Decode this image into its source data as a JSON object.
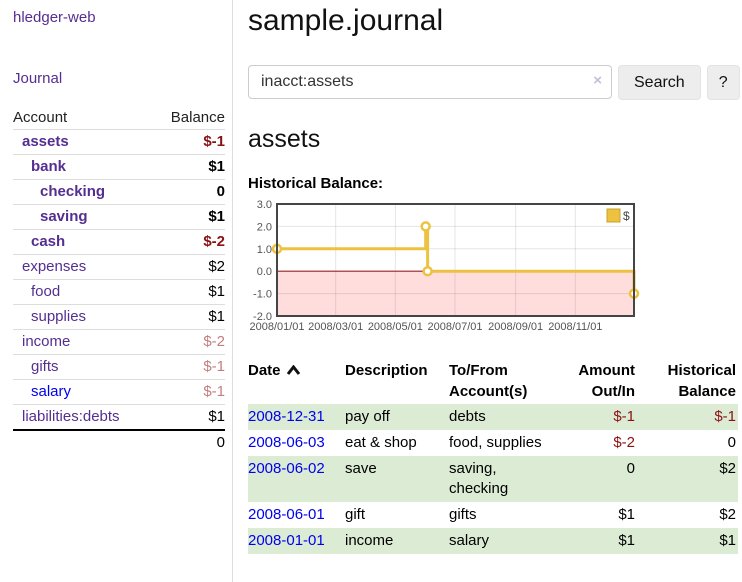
{
  "sidebar": {
    "brand": "hledger-web",
    "journal_link": "Journal",
    "columns": {
      "account": "Account",
      "balance": "Balance"
    },
    "accounts": [
      {
        "name": "assets",
        "indent": 0,
        "bold": true,
        "balance": "$-1",
        "balance_class": "neg-strong"
      },
      {
        "name": "bank",
        "indent": 1,
        "bold": true,
        "balance": "$1",
        "balance_class": ""
      },
      {
        "name": "checking",
        "indent": 2,
        "bold": true,
        "balance": "0",
        "balance_class": ""
      },
      {
        "name": "saving",
        "indent": 2,
        "bold": true,
        "balance": "$1",
        "balance_class": ""
      },
      {
        "name": "cash",
        "indent": 1,
        "bold": true,
        "balance": "$-2",
        "balance_class": "neg-strong"
      },
      {
        "name": "expenses",
        "indent": 0,
        "bold": false,
        "balance": "$2",
        "balance_class": ""
      },
      {
        "name": "food",
        "indent": 1,
        "bold": false,
        "balance": "$1",
        "balance_class": ""
      },
      {
        "name": "supplies",
        "indent": 1,
        "bold": false,
        "balance": "$1",
        "balance_class": ""
      },
      {
        "name": "income",
        "indent": 0,
        "bold": false,
        "balance": "$-2",
        "balance_class": "neg-soft"
      },
      {
        "name": "gifts",
        "indent": 1,
        "bold": false,
        "balance": "$-1",
        "balance_class": "neg-soft"
      },
      {
        "name": "salary",
        "indent": 1,
        "bold": false,
        "balance": "$-1",
        "balance_class": "neg-soft",
        "link": "blue"
      },
      {
        "name": "liabilities:debts",
        "indent": 0,
        "bold": false,
        "balance": "$1",
        "balance_class": ""
      }
    ],
    "total": "0"
  },
  "header": {
    "title": "sample.journal"
  },
  "search": {
    "value": "inacct:assets",
    "clear_icon": "×",
    "button_label": "Search",
    "help_label": "?"
  },
  "account_page": {
    "title": "assets",
    "chart_label": "Historical Balance:"
  },
  "chart_data": {
    "type": "line",
    "step": true,
    "title": "Historical Balance",
    "legend_label": "$",
    "legend_position": "top-right",
    "grid": true,
    "xlim": [
      "2008-01-01",
      "2008-12-31"
    ],
    "ylim": [
      -2,
      3
    ],
    "x_ticks": [
      {
        "date": "2008-01-01",
        "label": "2008/01/01"
      },
      {
        "date": "2008-03-01",
        "label": "2008/03/01"
      },
      {
        "date": "2008-05-01",
        "label": "2008/05/01"
      },
      {
        "date": "2008-07-01",
        "label": "2008/07/01"
      },
      {
        "date": "2008-09-01",
        "label": "2008/09/01"
      },
      {
        "date": "2008-11-01",
        "label": "2008/11/01"
      }
    ],
    "y_ticks": [
      {
        "v": 3,
        "label": "3.0"
      },
      {
        "v": 2,
        "label": "2.0"
      },
      {
        "v": 1,
        "label": "1.0"
      },
      {
        "v": 0,
        "label": "0.0"
      },
      {
        "v": -1,
        "label": "-1.0"
      },
      {
        "v": -2,
        "label": "-2.0"
      }
    ],
    "series": [
      {
        "name": "$",
        "color": "#edc240",
        "points": [
          {
            "x": "2008-01-01",
            "y": 1
          },
          {
            "x": "2008-06-01",
            "y": 2
          },
          {
            "x": "2008-06-03",
            "y": 0
          },
          {
            "x": "2008-12-31",
            "y": -1
          }
        ]
      }
    ],
    "negative_region_fill": "#ffdddd",
    "zero_line_color": "#992222"
  },
  "register": {
    "columns": [
      {
        "line1": "Date",
        "line2": "",
        "align": "left",
        "sortable": true
      },
      {
        "line1": "Description",
        "line2": "",
        "align": "left",
        "sortable": false
      },
      {
        "line1": "To/From",
        "line2": "Account(s)",
        "align": "left",
        "sortable": false
      },
      {
        "line1": "Amount",
        "line2": "Out/In",
        "align": "right",
        "sortable": false
      },
      {
        "line1": "Historical",
        "line2": "Balance",
        "align": "right",
        "sortable": false
      }
    ],
    "rows": [
      {
        "date": "2008-12-31",
        "description": "pay off",
        "accounts": "debts",
        "amount": "$-1",
        "amount_class": "neg",
        "balance": "$-1",
        "balance_class": "neg"
      },
      {
        "date": "2008-06-03",
        "description": "eat & shop",
        "accounts": "food, supplies",
        "amount": "$-2",
        "amount_class": "neg",
        "balance": "0",
        "balance_class": ""
      },
      {
        "date": "2008-06-02",
        "description": "save",
        "accounts": "saving, checking",
        "amount": "0",
        "amount_class": "",
        "balance": "$2",
        "balance_class": ""
      },
      {
        "date": "2008-06-01",
        "description": "gift",
        "accounts": "gifts",
        "amount": "$1",
        "amount_class": "",
        "balance": "$2",
        "balance_class": ""
      },
      {
        "date": "2008-01-01",
        "description": "income",
        "accounts": "salary",
        "amount": "$1",
        "amount_class": "",
        "balance": "$1",
        "balance_class": ""
      }
    ]
  },
  "colors": {
    "link_purple": "#552e91",
    "link_blue": "#0000ee",
    "negative_strong": "#8b1212",
    "negative_soft": "#c47e7e",
    "row_green": "#dcebd4",
    "chart_line": "#edc240",
    "chart_negative_fill": "#ffdddd",
    "chart_zero_line": "#992222"
  }
}
